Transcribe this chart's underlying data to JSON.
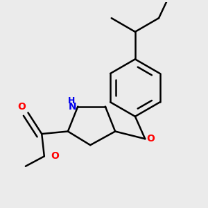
{
  "bg_color": "#ebebeb",
  "bond_color": "#000000",
  "bond_width": 1.8,
  "dbo": 0.018,
  "atom_colors": {
    "N": "#0000ee",
    "O": "#ff0000"
  },
  "font_size": 10,
  "font_size_small": 9
}
